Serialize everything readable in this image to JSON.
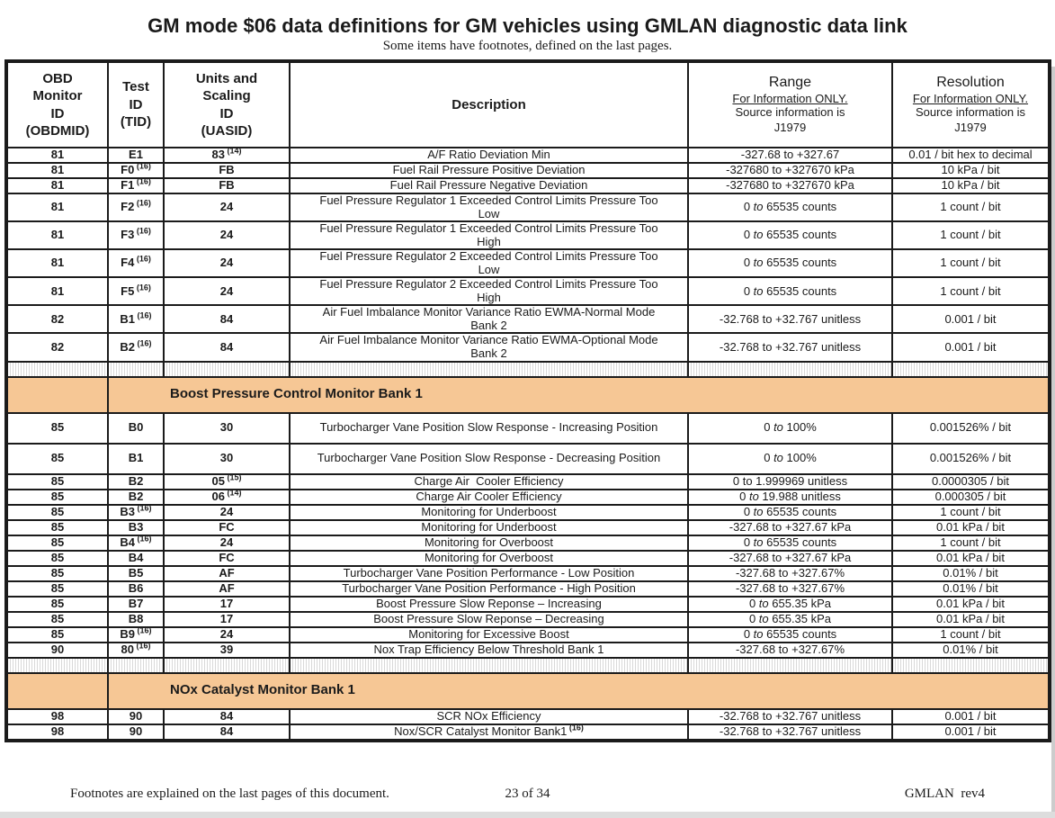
{
  "page": {
    "title": "GM mode $06 data definitions for GM vehicles using GMLAN diagnostic data link",
    "subtitle": "Some items have footnotes, defined on the last pages."
  },
  "table": {
    "columns": {
      "obdmid": "OBD\nMonitor\nID\n(OBDMID)",
      "tid": "Test\nID\n(TID)",
      "uasid": "Units and\nScaling\nID\n(UASID)",
      "description": "Description",
      "range": {
        "title": "Range",
        "note": "For Information ONLY.",
        "source": "Source information is\nJ1979"
      },
      "resolution": {
        "title": "Resolution",
        "note": "For Information ONLY.",
        "source": "Source information is\nJ1979"
      }
    },
    "rows": [
      {
        "type": "data",
        "obdmid": "81",
        "tid": "E1",
        "uasid": "83",
        "uasid_sup": "(14)",
        "desc": "A/F Ratio Deviation Min",
        "range": "-327.68 to +327.67",
        "res": "0.01 / bit hex to decimal"
      },
      {
        "type": "data",
        "obdmid": "81",
        "tid": "F0",
        "tid_sup": "(16)",
        "uasid": "FB",
        "desc": "Fuel Rail Pressure Positive Deviation",
        "range": "-327680 to +327670 kPa",
        "res": "10 kPa / bit"
      },
      {
        "type": "data",
        "obdmid": "81",
        "tid": "F1",
        "tid_sup": "(16)",
        "uasid": "FB",
        "desc": "Fuel Rail Pressure Negative Deviation",
        "range": "-327680 to +327670 kPa",
        "res": "10 kPa / bit"
      },
      {
        "type": "data",
        "obdmid": "81",
        "tid": "F2",
        "tid_sup": "(16)",
        "uasid": "24",
        "desc": "Fuel Pressure Regulator 1 Exceeded Control Limits Pressure Too\nLow",
        "range": "0 to 65535 counts",
        "to_italic": true,
        "res": "1 count / bit"
      },
      {
        "type": "data",
        "obdmid": "81",
        "tid": "F3",
        "tid_sup": "(16)",
        "uasid": "24",
        "desc": "Fuel Pressure Regulator 1 Exceeded Control Limits Pressure Too\nHigh",
        "range": "0 to 65535 counts",
        "to_italic": true,
        "res": "1 count / bit"
      },
      {
        "type": "data",
        "obdmid": "81",
        "tid": "F4",
        "tid_sup": "(16)",
        "uasid": "24",
        "desc": "Fuel Pressure Regulator 2 Exceeded Control Limits Pressure Too\nLow",
        "range": "0 to 65535 counts",
        "to_italic": true,
        "res": "1 count / bit"
      },
      {
        "type": "data",
        "obdmid": "81",
        "tid": "F5",
        "tid_sup": "(16)",
        "uasid": "24",
        "desc": "Fuel Pressure Regulator 2 Exceeded Control Limits Pressure Too\nHigh",
        "range": "0 to 65535 counts",
        "to_italic": true,
        "res": "1 count / bit"
      },
      {
        "type": "data",
        "obdmid": "82",
        "tid": "B1",
        "tid_sup": "(16)",
        "uasid": "84",
        "desc": "Air Fuel Imbalance Monitor Variance Ratio EWMA-Normal Mode\nBank 2",
        "range": "-32.768 to +32.767 unitless",
        "res": "0.001 / bit"
      },
      {
        "type": "data",
        "obdmid": "82",
        "tid": "B2",
        "tid_sup": "(16)",
        "uasid": "84",
        "desc": "Air Fuel Imbalance Monitor Variance Ratio EWMA-Optional Mode\nBank 2",
        "range": "-32.768 to +32.767 unitless",
        "res": "0.001 / bit"
      },
      {
        "type": "separator"
      },
      {
        "type": "section",
        "label": "Boost Pressure Control Monitor Bank 1"
      },
      {
        "type": "data",
        "obdmid": "85",
        "tid": "B0",
        "uasid": "30",
        "desc": "Turbocharger Vane Position Slow Response - Increasing Position",
        "range": "0 to 100%",
        "to_italic": true,
        "res": "0.001526% / bit"
      },
      {
        "type": "data",
        "obdmid": "85",
        "tid": "B1",
        "uasid": "30",
        "desc": "Turbocharger Vane Position Slow Response - Decreasing Position",
        "range": "0 to 100%",
        "to_italic": true,
        "res": "0.001526% / bit"
      },
      {
        "type": "data",
        "obdmid": "85",
        "tid": "B2",
        "uasid": "05",
        "uasid_sup": "(15)",
        "desc": "Charge Air  Cooler Efficiency",
        "range": "0 to 1.999969 unitless",
        "res": "0.0000305 / bit"
      },
      {
        "type": "data",
        "obdmid": "85",
        "tid": "B2",
        "uasid": "06",
        "uasid_sup": "(14)",
        "desc": "Charge Air Cooler Efficiency",
        "range": "0 to 19.988 unitless",
        "to_italic": true,
        "res": "0.000305 / bit"
      },
      {
        "type": "data",
        "obdmid": "85",
        "tid": "B3",
        "tid_sup": "(16)",
        "uasid": "24",
        "desc": "Monitoring for Underboost",
        "range": "0 to 65535 counts",
        "to_italic": true,
        "res": "1 count / bit"
      },
      {
        "type": "data",
        "obdmid": "85",
        "tid": "B3",
        "uasid": "FC",
        "desc": "Monitoring for Underboost",
        "range": "-327.68 to +327.67 kPa",
        "res": "0.01 kPa / bit"
      },
      {
        "type": "data",
        "obdmid": "85",
        "tid": "B4",
        "tid_sup": "(16)",
        "uasid": "24",
        "desc": "Monitoring for Overboost",
        "range": "0 to 65535 counts",
        "to_italic": true,
        "res": "1 count / bit"
      },
      {
        "type": "data",
        "obdmid": "85",
        "tid": "B4",
        "uasid": "FC",
        "desc": "Monitoring for Overboost",
        "range": "-327.68 to +327.67 kPa",
        "res": "0.01 kPa / bit"
      },
      {
        "type": "data",
        "obdmid": "85",
        "tid": "B5",
        "uasid": "AF",
        "desc": "Turbocharger Vane Position Performance - Low Position",
        "range": "-327.68 to +327.67%",
        "res": "0.01% / bit"
      },
      {
        "type": "data",
        "obdmid": "85",
        "tid": "B6",
        "uasid": "AF",
        "desc": "Turbocharger Vane Position Performance - High Position",
        "range": "-327.68 to +327.67%",
        "res": "0.01% / bit"
      },
      {
        "type": "data",
        "obdmid": "85",
        "tid": "B7",
        "uasid": "17",
        "desc": "Boost Pressure Slow Reponse – Increasing",
        "range": "0 to 655.35 kPa",
        "to_italic": true,
        "res": "0.01 kPa / bit"
      },
      {
        "type": "data",
        "obdmid": "85",
        "tid": "B8",
        "uasid": "17",
        "desc": "Boost Pressure Slow Reponse – Decreasing",
        "range": "0 to 655.35 kPa",
        "to_italic": true,
        "res": "0.01 kPa / bit"
      },
      {
        "type": "data",
        "obdmid": "85",
        "tid": "B9",
        "tid_sup": "(16)",
        "uasid": "24",
        "desc": "Monitoring for Excessive Boost",
        "range": "0 to 65535 counts",
        "to_italic": true,
        "res": "1 count / bit"
      },
      {
        "type": "data",
        "obdmid": "90",
        "tid": "80",
        "tid_sup": "(16)",
        "uasid": "39",
        "desc": "Nox Trap Efficiency Below Threshold Bank 1",
        "range": "-327.68 to +327.67%",
        "res": "0.01% / bit"
      },
      {
        "type": "separator"
      },
      {
        "type": "section",
        "label": "NOx Catalyst Monitor Bank 1"
      },
      {
        "type": "data",
        "obdmid": "98",
        "tid": "90",
        "uasid": "84",
        "desc": "SCR NOx Efficiency",
        "range": "-32.768 to +32.767 unitless",
        "res": "0.001 / bit"
      },
      {
        "type": "data",
        "obdmid": "98",
        "tid": "90",
        "uasid": "84",
        "desc": "Nox/SCR Catalyst Monitor Bank1",
        "desc_sup": "(16)",
        "range": "-32.768 to +32.767 unitless",
        "res": "0.001 / bit"
      }
    ]
  },
  "footer": {
    "left": "Footnotes are explained on the last pages of this document.",
    "center": "23 of 34",
    "right": "GMLAN  rev4"
  },
  "colors": {
    "section_header_bg": "#f6c795",
    "border": "#1b1b1b",
    "stripe_gray": "#d9d9d9",
    "page_edge_gray": "#cccccc"
  }
}
